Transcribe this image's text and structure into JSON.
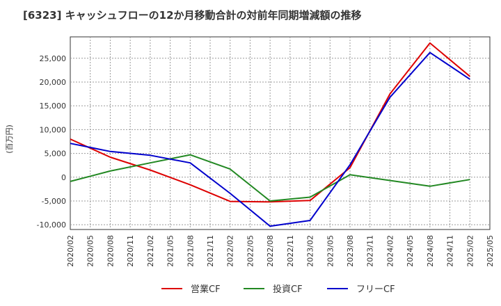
{
  "chart_data": {
    "type": "line",
    "title": "[6323]  キャッシュフローの12か月移動合計の対前年同期増減額の推移",
    "ylabel": "(百万円)",
    "xlabel": "",
    "ylim": [
      -11000,
      29500
    ],
    "grid": true,
    "legend": "bottom",
    "x_ticks": [
      "2020/02",
      "2020/05",
      "2020/08",
      "2020/11",
      "2021/02",
      "2021/05",
      "2021/08",
      "2021/11",
      "2022/02",
      "2022/05",
      "2022/08",
      "2022/11",
      "2023/02",
      "2023/05",
      "2023/08",
      "2023/11",
      "2024/02",
      "2024/05",
      "2024/08",
      "2024/11",
      "2025/02",
      "2025/05"
    ],
    "y_ticks": [
      25000,
      20000,
      15000,
      10000,
      5000,
      0,
      -5000,
      -10000
    ],
    "y_tick_labels": [
      "25,000",
      "20,000",
      "15,000",
      "10,000",
      "5,000",
      "0",
      "-5,000",
      "-10,000"
    ],
    "series": [
      {
        "name": "営業CF",
        "color": "#dd0000",
        "points": [
          [
            "2020/02",
            8000
          ],
          [
            "2020/08",
            4200
          ],
          [
            "2021/02",
            1500
          ],
          [
            "2021/08",
            -1600
          ],
          [
            "2022/02",
            -5100
          ],
          [
            "2022/08",
            -5200
          ],
          [
            "2023/02",
            -4900
          ],
          [
            "2023/08",
            2000
          ],
          [
            "2024/02",
            17500
          ],
          [
            "2024/08",
            28200
          ],
          [
            "2025/02",
            21200
          ]
        ]
      },
      {
        "name": "投資CF",
        "color": "#228822",
        "points": [
          [
            "2020/02",
            -900
          ],
          [
            "2020/08",
            1300
          ],
          [
            "2021/02",
            3000
          ],
          [
            "2021/08",
            4700
          ],
          [
            "2022/02",
            1700
          ],
          [
            "2022/08",
            -5000
          ],
          [
            "2023/02",
            -4200
          ],
          [
            "2023/08",
            500
          ],
          [
            "2024/08",
            -1900
          ],
          [
            "2025/02",
            -500
          ]
        ]
      },
      {
        "name": "フリーCF",
        "color": "#0000cc",
        "points": [
          [
            "2020/02",
            7100
          ],
          [
            "2020/08",
            5400
          ],
          [
            "2021/02",
            4600
          ],
          [
            "2021/08",
            3000
          ],
          [
            "2022/02",
            -3400
          ],
          [
            "2022/08",
            -10300
          ],
          [
            "2023/02",
            -9100
          ],
          [
            "2023/08",
            2600
          ],
          [
            "2024/02",
            16800
          ],
          [
            "2024/08",
            26200
          ],
          [
            "2025/02",
            20600
          ]
        ]
      }
    ]
  }
}
